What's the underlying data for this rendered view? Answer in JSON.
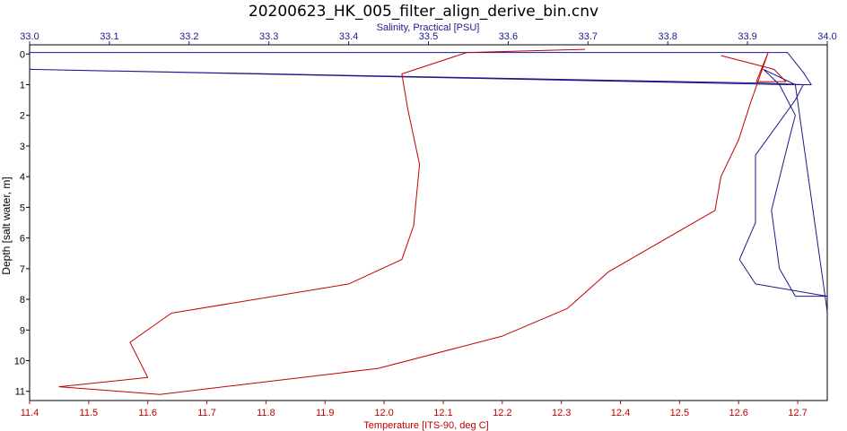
{
  "chart_data": {
    "type": "line",
    "title": "20200623_HK_005_filter_align_derive_bin.cnv",
    "y_axis": {
      "label": "Depth [salt water, m]",
      "range": [
        -0.3,
        11.3
      ],
      "ticks": [
        0,
        1,
        2,
        3,
        4,
        5,
        6,
        7,
        8,
        9,
        10,
        11
      ],
      "reversed": true
    },
    "x_axis_top": {
      "label": "Salinity, Practical [PSU]",
      "range": [
        33.0,
        34.0
      ],
      "ticks": [
        "33.0",
        "33.1",
        "33.2",
        "33.3",
        "33.4",
        "33.5",
        "33.6",
        "33.7",
        "33.8",
        "33.9",
        "34.0"
      ],
      "color": "#1a1a8c"
    },
    "x_axis_bottom": {
      "label": "Temperature [ITS-90, deg C]",
      "range": [
        11.4,
        12.75
      ],
      "ticks": [
        "11.4",
        "11.5",
        "11.6",
        "11.7",
        "11.8",
        "11.9",
        "12.0",
        "12.1",
        "12.2",
        "12.3",
        "12.4",
        "12.5",
        "12.6",
        "12.7"
      ],
      "color": "#c00000"
    },
    "grid": false,
    "series": [
      {
        "axis": "top",
        "color": "#1a1a8c",
        "points": [
          [
            33.0,
            -0.05
          ],
          [
            33.88,
            -0.05
          ],
          [
            33.95,
            -0.05
          ],
          [
            33.97,
            0.6
          ],
          [
            33.98,
            1.0
          ],
          [
            33.95,
            1.0
          ],
          [
            33.0,
            0.5
          ],
          [
            33.92,
            0.95
          ],
          [
            33.97,
            1.0
          ],
          [
            33.96,
            1.5
          ],
          [
            33.91,
            3.3
          ],
          [
            33.91,
            5.5
          ],
          [
            33.89,
            6.7
          ],
          [
            33.91,
            7.5
          ],
          [
            34.0,
            7.9
          ],
          [
            33.96,
            7.9
          ],
          [
            33.94,
            7.0
          ],
          [
            33.93,
            5.1
          ],
          [
            33.95,
            3.0
          ],
          [
            33.96,
            2.0
          ],
          [
            33.94,
            1.0
          ],
          [
            33.92,
            0.5
          ],
          [
            33.96,
            1.0
          ],
          [
            34.0,
            8.4
          ]
        ]
      },
      {
        "axis": "bottom",
        "color": "#c00000",
        "points": [
          [
            12.34,
            -0.15
          ],
          [
            12.14,
            -0.05
          ],
          [
            12.03,
            0.65
          ],
          [
            12.04,
            1.8
          ],
          [
            12.06,
            3.6
          ],
          [
            12.05,
            5.6
          ],
          [
            12.03,
            6.7
          ],
          [
            11.94,
            7.5
          ],
          [
            11.64,
            8.45
          ],
          [
            11.57,
            9.4
          ],
          [
            11.6,
            10.55
          ],
          [
            11.45,
            10.85
          ],
          [
            11.62,
            11.1
          ],
          [
            11.99,
            10.25
          ],
          [
            12.2,
            9.2
          ],
          [
            12.31,
            8.3
          ],
          [
            12.38,
            7.1
          ],
          [
            12.56,
            5.1
          ],
          [
            12.57,
            4.0
          ],
          [
            12.6,
            2.8
          ],
          [
            12.62,
            1.6
          ],
          [
            12.65,
            -0.05
          ],
          [
            12.63,
            0.9
          ],
          [
            12.68,
            0.9
          ],
          [
            12.66,
            0.5
          ],
          [
            12.57,
            0.05
          ]
        ]
      }
    ]
  }
}
